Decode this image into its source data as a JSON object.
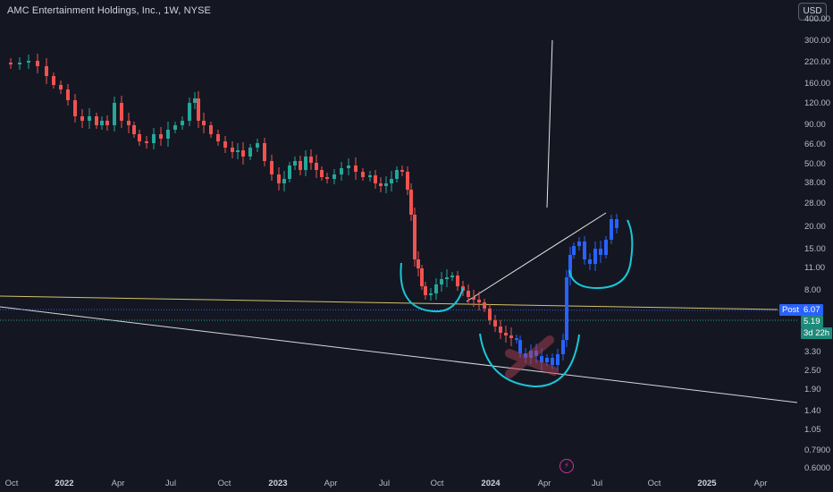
{
  "header": {
    "title": "AMC Entertainment Holdings, Inc., 1W, NYSE",
    "currency_button": "USD"
  },
  "chart_data": {
    "type": "candlestick",
    "title": "AMC Entertainment Holdings, Inc., 1W, NYSE",
    "y_scale": "log",
    "y_ticks": [
      "400.00",
      "300.00",
      "220.00",
      "160.00",
      "120.00",
      "90.00",
      "66.00",
      "50.00",
      "38.00",
      "28.00",
      "20.00",
      "15.00",
      "11.00",
      "8.00",
      "5.19",
      "3.30",
      "2.50",
      "1.90",
      "1.40",
      "1.05",
      "0.7900",
      "0.6000"
    ],
    "x_ticks": [
      "Oct",
      "2022",
      "Apr",
      "Jul",
      "Oct",
      "2023",
      "Apr",
      "Jul",
      "Oct",
      "2024",
      "Apr",
      "Jul",
      "Oct",
      "2025",
      "Apr"
    ],
    "last_price": "5.19",
    "countdown": "3d 22h",
    "post_label": "Post",
    "post_price": "6.07",
    "colors": {
      "up": "#26a69a",
      "down": "#ef5350",
      "marked": "#2962ff",
      "annotation": "#19c7d6"
    }
  }
}
